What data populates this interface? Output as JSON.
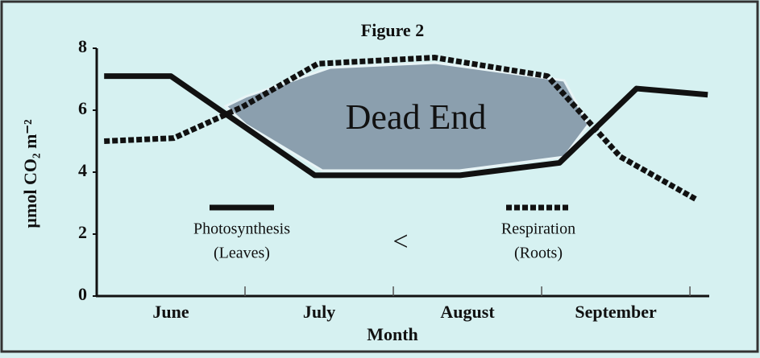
{
  "chart_data": {
    "type": "line",
    "title": "Figure 2",
    "y_label": "µmol CO₂ m⁻²",
    "x_label": "Month",
    "xlim": [
      0,
      4.13
    ],
    "xticks": [
      {
        "value": 0.5,
        "label": "June"
      },
      {
        "value": 1.5,
        "label": "July"
      },
      {
        "value": 2.5,
        "label": "August"
      },
      {
        "value": 3.5,
        "label": "September"
      }
    ],
    "x_minor_ticks": [
      1,
      2,
      3,
      4
    ],
    "ylim": [
      0,
      8
    ],
    "yticks": [
      0,
      2,
      4,
      6,
      8
    ],
    "annotations": {
      "region": "Dead End",
      "relation": "<"
    },
    "series": [
      {
        "name": "Photosynthesis",
        "name_detail": "(Leaves)",
        "color": "#111111",
        "dashed": false,
        "x": [
          0.05,
          0.5,
          1.47,
          2.45,
          3.12,
          3.64,
          4.12
        ],
        "values": [
          7.1,
          7.1,
          3.9,
          3.9,
          4.3,
          6.7,
          6.5
        ]
      },
      {
        "name": "Respiration",
        "name_detail": "(Roots)",
        "color": "#111111",
        "dashed": true,
        "x": [
          0.05,
          0.52,
          0.98,
          1.49,
          2.28,
          3.04,
          3.53,
          4.05
        ],
        "values": [
          5.0,
          5.1,
          6.1,
          7.5,
          7.7,
          7.1,
          4.5,
          3.1
        ]
      }
    ]
  }
}
